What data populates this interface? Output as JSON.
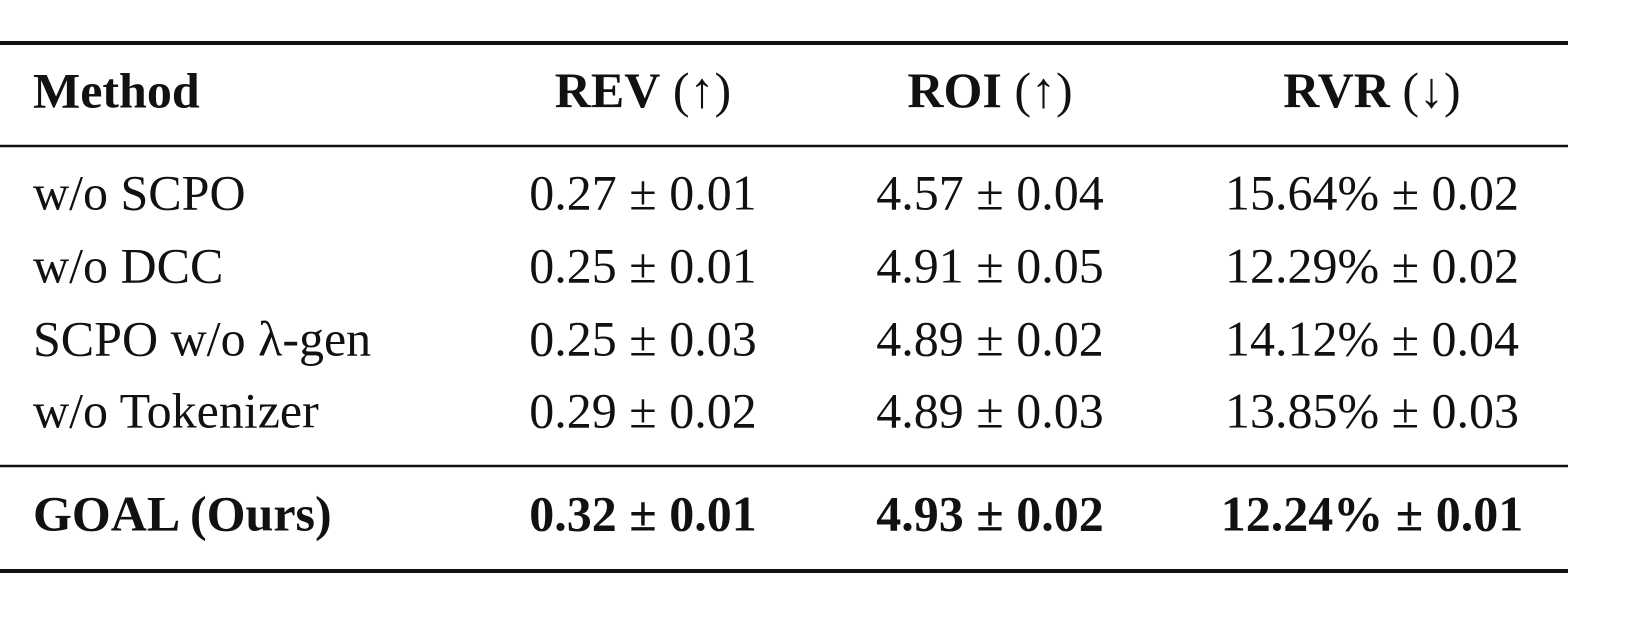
{
  "table": {
    "header": [
      {
        "name": "Method"
      },
      {
        "name": "REV",
        "suffix": "(↑)"
      },
      {
        "name": "ROI",
        "suffix": "(↑)"
      },
      {
        "name": "RVR",
        "suffix": "(↓)"
      }
    ],
    "rows": [
      [
        "w/o SCPO",
        "0.27 ± 0.01",
        "4.57 ± 0.04",
        "15.64% ± 0.02"
      ],
      [
        "w/o DCC",
        "0.25 ± 0.01",
        "4.91 ± 0.05",
        "12.29% ± 0.02"
      ],
      [
        "SCPO w/o λ-gen",
        "0.25 ± 0.03",
        "4.89 ± 0.02",
        "14.12% ± 0.04"
      ],
      [
        "w/o Tokenizer",
        "0.29 ± 0.02",
        "4.89 ± 0.03",
        "13.85% ± 0.03"
      ]
    ],
    "final_row": [
      "GOAL (Ours)",
      "0.32 ± 0.01",
      "4.93 ± 0.02",
      "12.24% ± 0.01"
    ]
  }
}
